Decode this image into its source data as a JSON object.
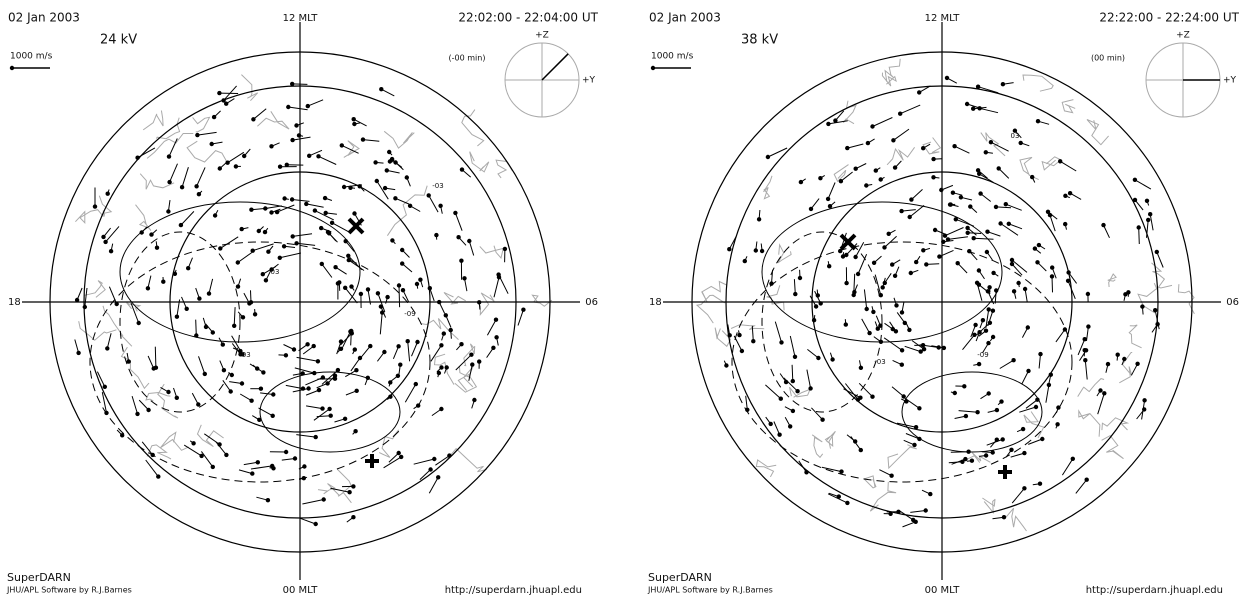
{
  "panels": [
    {
      "date": "02 Jan 2003",
      "voltage": "24 kV",
      "scale": "1000 m/s",
      "noon": "12 MLT",
      "time": "22:02:00 - 22:04:00 UT",
      "delay": "(-00 min)",
      "dusk": "18",
      "dawn": "06",
      "midnight": "00 MLT",
      "z_axis": "+Z",
      "y_axis": "+Y",
      "contours": [
        "-03",
        "03",
        "-09",
        "-03"
      ],
      "source": "SuperDARN",
      "credit": "JHU/APL Software by R.J.Barnes",
      "url": "http://superdarn.jhuapl.edu"
    },
    {
      "date": "02 Jan 2003",
      "voltage": "38 kV",
      "scale": "1000 m/s",
      "noon": "12 MLT",
      "time": "22:22:00 - 22:24:00 UT",
      "delay": "(00 min)",
      "dusk": "18",
      "dawn": "06",
      "midnight": "00 MLT",
      "z_axis": "+Z",
      "y_axis": "+Y",
      "contours": [
        "03",
        "-03",
        "-09"
      ],
      "source": "SuperDARN",
      "credit": "JHU/APL Software by R.J.Barnes",
      "url": "http://superdarn.jhuapl.edu"
    }
  ]
}
